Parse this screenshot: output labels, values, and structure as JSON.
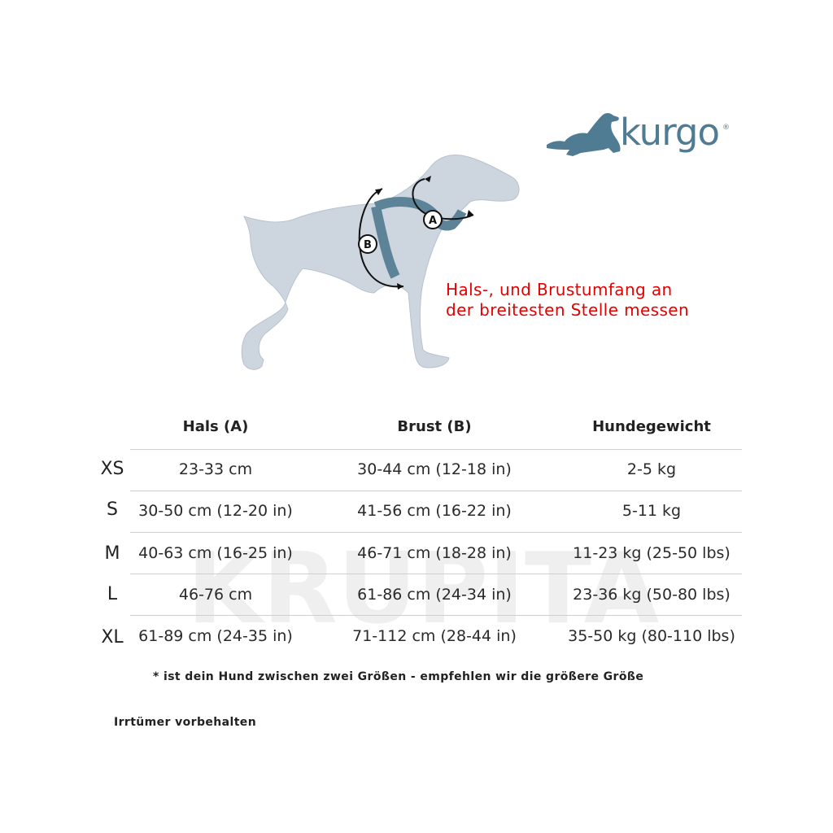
{
  "watermark": {
    "text": "KRUPITA"
  },
  "logo": {
    "word": "kurgo",
    "reg_mark": "®",
    "icon": "dog-silhouette-icon"
  },
  "diagram": {
    "label_a": "A",
    "label_b": "B"
  },
  "instruction": {
    "line1": "Hals-, und Brustumfang an",
    "line2": "der breitesten Stelle messen"
  },
  "table": {
    "headers": [
      "Hals (A)",
      "Brust (B)",
      "Hundegewicht"
    ],
    "rows": [
      {
        "size": "XS",
        "neck": "23-33 cm",
        "chest": "30-44 cm (12-18 in)",
        "weight": "2-5 kg"
      },
      {
        "size": "S",
        "neck": "30-50 cm (12-20 in)",
        "chest": "41-56 cm (16-22 in)",
        "weight": "5-11 kg"
      },
      {
        "size": "M",
        "neck": "40-63 cm (16-25 in)",
        "chest": "46-71 cm (18-28 in)",
        "weight": "11-23 kg (25-50 lbs)"
      },
      {
        "size": "L",
        "neck": "46-76 cm",
        "chest": "61-86 cm (24-34 in)",
        "weight": "23-36 kg (50-80 lbs)"
      },
      {
        "size": "XL",
        "neck": "61-89 cm (24-35 in)",
        "chest": "71-112 cm (28-44 in)",
        "weight": "35-50 kg (80-110 lbs)"
      }
    ]
  },
  "footnote": "* ist dein Hund zwischen zwei Größen - empfehlen wir die größere Größe",
  "disclaimer": "Irrtümer vorbehalten",
  "colors": {
    "brand": "#4f7c93",
    "instruction": "#e60000",
    "dog_body": "#cdd5df",
    "harness": "#5d8399"
  }
}
